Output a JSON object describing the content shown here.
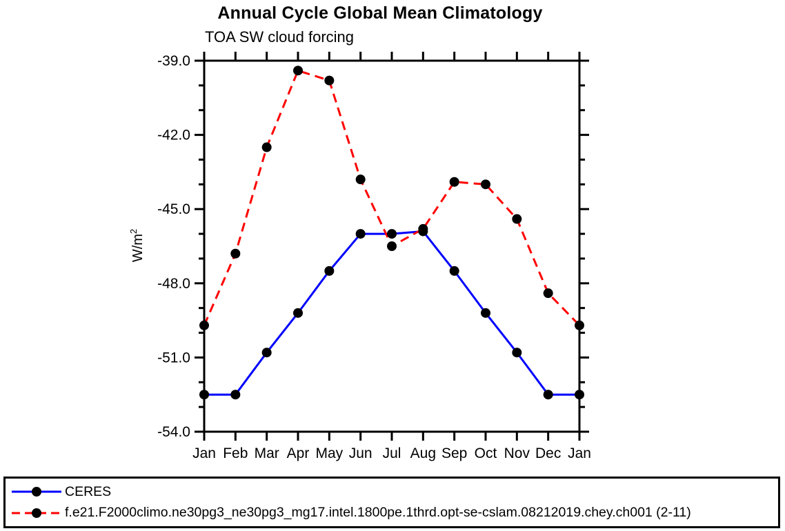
{
  "title": "Annual Cycle Global Mean Climatology",
  "subtitle": "TOA SW cloud forcing",
  "y_axis": {
    "label": "W/m",
    "label_sup": "2"
  },
  "chart_data": {
    "type": "line",
    "title": "Annual Cycle Global Mean Climatology",
    "subtitle": "TOA SW cloud forcing",
    "ylabel": "W/m^2",
    "x_categories": [
      "Jan",
      "Feb",
      "Mar",
      "Apr",
      "May",
      "Jun",
      "Jul",
      "Aug",
      "Sep",
      "Oct",
      "Nov",
      "Dec",
      "Jan"
    ],
    "ylim": [
      -54.0,
      -39.0
    ],
    "ytick_major": [
      -39.0,
      -42.0,
      -45.0,
      -48.0,
      -51.0,
      -54.0
    ],
    "ytick_labels": [
      "-39.0",
      "-42.0",
      "-45.0",
      "-48.0",
      "-51.0",
      "-54.0"
    ],
    "ytick_minor_step": 1.0,
    "grid": false,
    "legend_position": "bottom",
    "marker": {
      "shape": "circle",
      "color": "#000000",
      "radius": 7
    },
    "series": [
      {
        "name": "CERES",
        "color": "#0000ff",
        "line_style": "solid",
        "values": [
          -52.5,
          -52.5,
          -50.8,
          -49.2,
          -47.5,
          -46.0,
          -46.0,
          -45.9,
          -47.5,
          -49.2,
          -50.8,
          -52.5,
          -52.5
        ]
      },
      {
        "name": "f.e21.F2000climo.ne30pg3_ne30pg3_mg17.intel.1800pe.1thrd.opt-se-cslam.08212019.chey.ch001 (2-11)",
        "color": "#ff0000",
        "line_style": "dashed",
        "values": [
          -49.7,
          -46.8,
          -42.5,
          -39.4,
          -39.8,
          -43.8,
          -46.5,
          -45.8,
          -43.9,
          -44.0,
          -45.4,
          -48.4,
          -49.7
        ]
      }
    ]
  },
  "legend": {
    "items": [
      {
        "label": "CERES",
        "color": "#0000ff",
        "style": "solid"
      },
      {
        "label": "f.e21.F2000climo.ne30pg3_ne30pg3_mg17.intel.1800pe.1thrd.opt-se-cslam.08212019.chey.ch001 (2-11)",
        "color": "#ff0000",
        "style": "dashed"
      }
    ]
  }
}
